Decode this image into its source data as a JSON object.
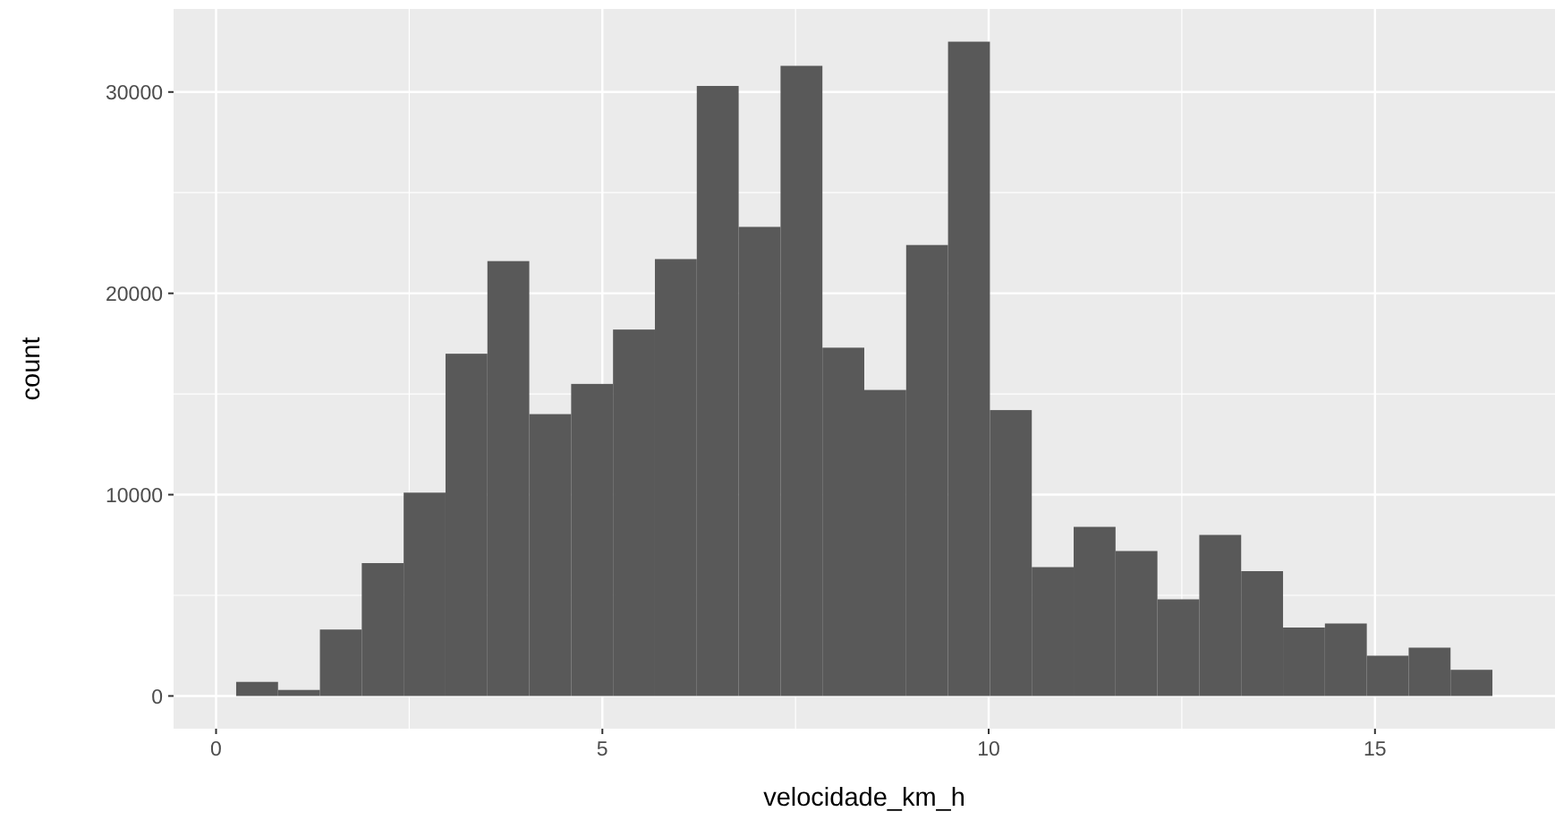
{
  "chart_data": {
    "type": "histogram",
    "xlabel": "velocidade_km_h",
    "ylabel": "count",
    "color": "#595959",
    "bins": [
      0.26,
      0.802,
      1.344,
      1.886,
      2.428,
      2.97,
      3.512,
      4.054,
      4.596,
      5.138,
      5.68,
      6.222,
      6.764,
      7.306,
      7.848,
      8.39,
      8.932,
      9.474,
      10.016,
      10.558,
      11.1,
      11.642,
      12.184,
      12.726,
      13.268,
      13.81,
      14.352,
      14.894,
      15.436,
      15.978,
      16.52
    ],
    "values": [
      700,
      300,
      3300,
      6600,
      10100,
      17000,
      21600,
      14000,
      15500,
      18200,
      21700,
      30300,
      23300,
      31300,
      17300,
      15200,
      22400,
      32500,
      14200,
      6400,
      8400,
      7200,
      4800,
      8000,
      6200,
      3400,
      3600,
      2000,
      2400,
      1300
    ],
    "xlim": [
      -0.55,
      17.33
    ],
    "xticks": [
      0,
      5,
      10,
      15
    ],
    "ylim": [
      -1625,
      34125
    ],
    "yticks": [
      0,
      10000,
      20000,
      30000
    ],
    "grid": true
  }
}
